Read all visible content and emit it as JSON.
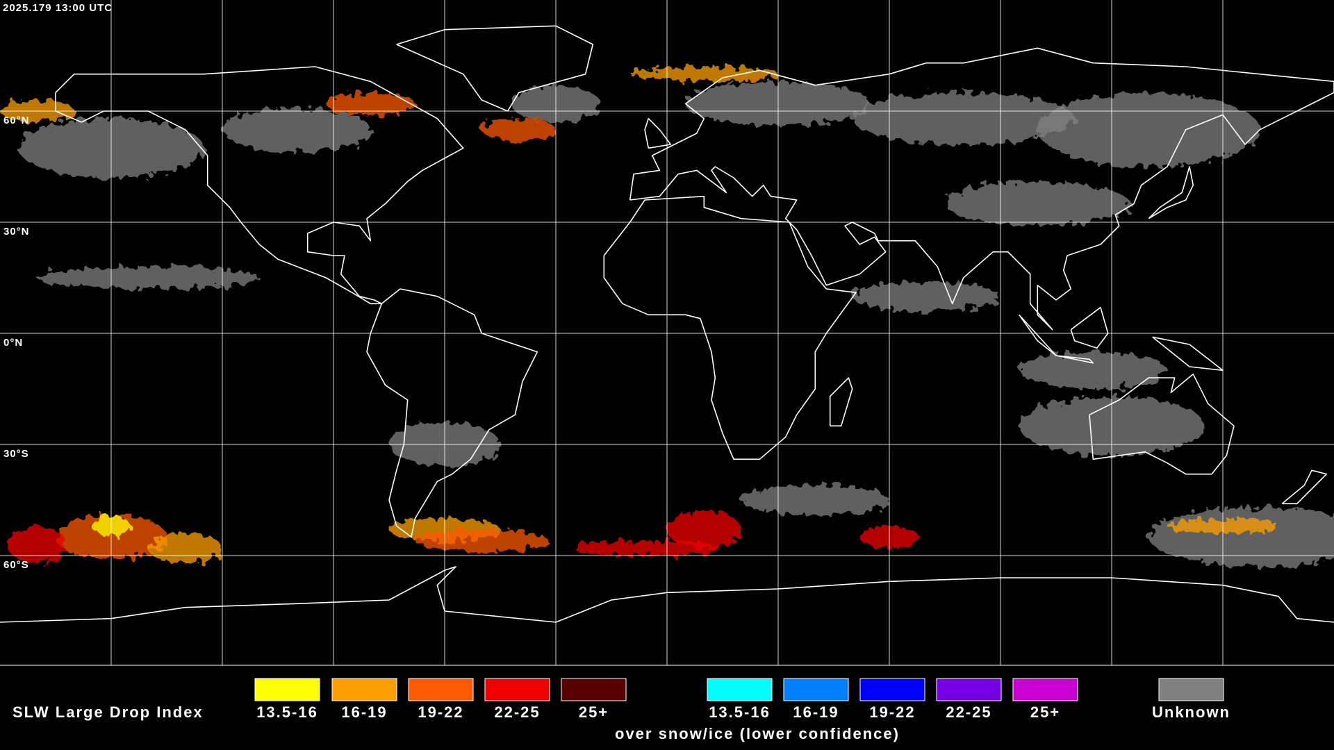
{
  "timestamp": "2025.179 13:00 UTC",
  "lat_labels": [
    "60°N",
    "30°N",
    "0°N",
    "30°S",
    "60°S"
  ],
  "legend": {
    "title": "SLW Large Drop Index",
    "items": [
      {
        "label": "13.5-16",
        "color": "#ffff00"
      },
      {
        "label": "16-19",
        "color": "#ffa000"
      },
      {
        "label": "19-22",
        "color": "#ff5a00"
      },
      {
        "label": "22-25",
        "color": "#f00000"
      },
      {
        "label": "25+",
        "color": "#5a0000"
      }
    ],
    "snow_items": [
      {
        "label": "13.5-16",
        "color": "#00ffff"
      },
      {
        "label": "16-19",
        "color": "#0080ff"
      },
      {
        "label": "19-22",
        "color": "#0000ff"
      },
      {
        "label": "22-25",
        "color": "#7800e6"
      },
      {
        "label": "25+",
        "color": "#c800d2"
      }
    ],
    "snow_caption": "over snow/ice (lower confidence)",
    "unknown": {
      "label": "Unknown",
      "color": "#808080"
    }
  }
}
